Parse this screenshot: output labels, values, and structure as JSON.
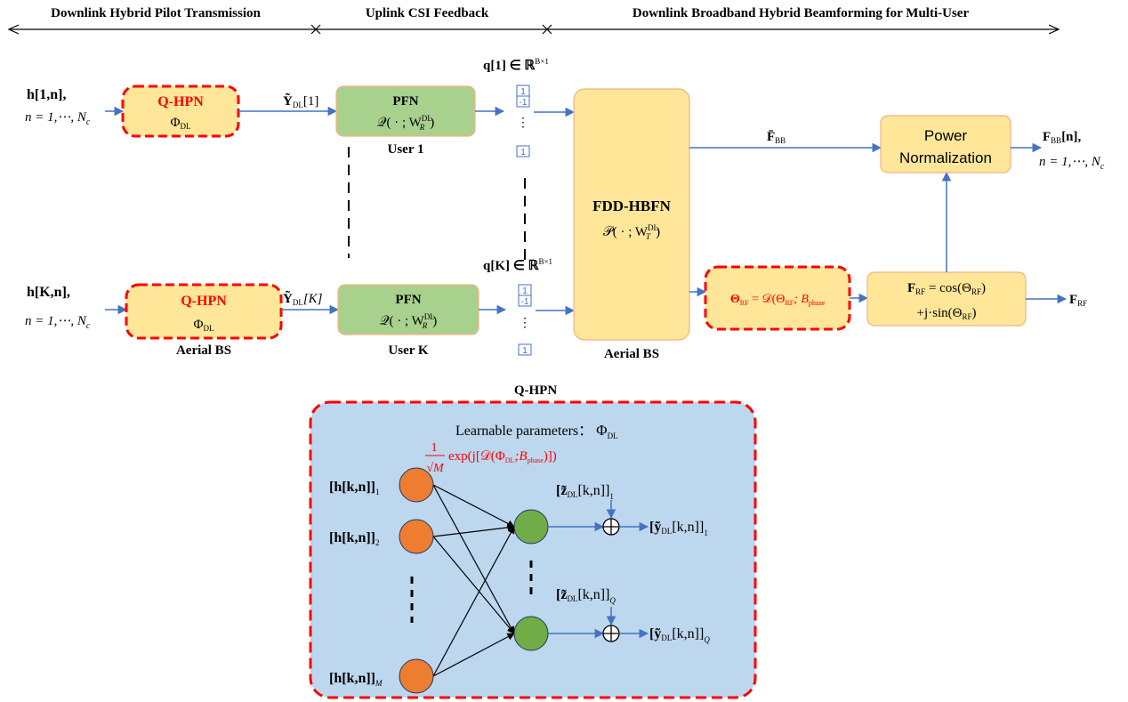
{
  "stages": {
    "stage1": "Downlink Hybrid Pilot Transmission",
    "stage2": "Uplink CSI Feedback",
    "stage3": "Downlink Broadband Hybrid Beamforming for Multi-User"
  },
  "top_row": {
    "input_line1": "h[1,n],",
    "input_line2": "n = 1,⋯, N",
    "input_sub": "c",
    "qhpn_title": "Q-HPN",
    "qhpn_param": "Φ",
    "qhpn_param_sub": "DL",
    "y_label": "Ỹ",
    "y_sub": "DL",
    "y_idx": "[1]",
    "pfn_title": "PFN",
    "pfn_func": "𝒬( · ; W",
    "pfn_sup": "DL",
    "pfn_sub": "R",
    "pfn_close": ")",
    "user_label": "User 1",
    "q_label": "q[1] ∈ ℝ",
    "q_sup": "B×1",
    "bits": [
      "1",
      "-1",
      "⋮",
      "1"
    ]
  },
  "bottom_row": {
    "input_line1": "h[K,n],",
    "input_line2": "n = 1,⋯, N",
    "input_sub": "c",
    "qhpn_title": "Q-HPN",
    "qhpn_param": "Φ",
    "qhpn_param_sub": "DL",
    "bs_label": "Aerial BS",
    "y_label": "Ỹ",
    "y_sub": "DL",
    "y_idx": "[K]",
    "pfn_title": "PFN",
    "pfn_func": "𝒬( · ; W",
    "pfn_sup": "DL",
    "pfn_sub": "R",
    "pfn_close": ")",
    "user_label": "User K",
    "q_label": "q[K] ∈ ℝ",
    "q_sup": "B×1",
    "bits": [
      "1",
      "-1",
      "⋮",
      "1"
    ]
  },
  "hbfn": {
    "title": "FDD-HBFN",
    "func": "𝒫( · ; W",
    "sup": "DL",
    "sub": "T",
    "close": ")",
    "bs_label": "Aerial BS",
    "fbb_label": "F̄",
    "fbb_sub": "BB"
  },
  "power": {
    "line1": "Power",
    "line2": "Normalization",
    "out_line1": "F",
    "out_sub": "BB",
    "out_rest": "[n],",
    "out_line2": "n = 1,⋯, N",
    "out_line2_sub": "c"
  },
  "quant": {
    "text_a": "Θ",
    "sub_a": "RF",
    "text_b": " = 𝒟(Θ",
    "sub_b": "RF",
    "text_c": "; B",
    "sub_c": "phase"
  },
  "frf": {
    "line1_a": "F",
    "line1_sub": "RF",
    "line1_b": " = cos(Θ",
    "line1_sub2": "RF",
    "line1_c": ")",
    "line2_a": "+j·sin(Θ",
    "line2_sub": "RF",
    "line2_b": ")",
    "out_a": "F",
    "out_sub": "RF"
  },
  "detail": {
    "title": "Q-HPN",
    "params_text": "Learnable parameters：",
    "params_sym": "Φ",
    "params_sub": "DL",
    "weight_num": "1",
    "weight_den": "√M",
    "weight_expr_a": "exp(j[𝒟(Φ",
    "weight_sub_a": "DL",
    "weight_expr_b": ";B",
    "weight_sub_b": "phase",
    "weight_expr_c": ")])",
    "in1": "[h[k,n]]",
    "in1_sub": "1",
    "in2": "[h[k,n]]",
    "in2_sub": "2",
    "inM": "[h[k,n]]",
    "inM_sub": "M",
    "z1": "[z̃",
    "z1_sub": "DL",
    "z1_rest": "[k,n]]",
    "z1_idx": "1",
    "zQ": "[z̃",
    "zQ_sub": "DL",
    "zQ_rest": "[k,n]]",
    "zQ_idx": "Q",
    "y1": "[ỹ",
    "y1_sub": "DL",
    "y1_rest": "[k,n]]",
    "y1_idx": "1",
    "yQ": "[ỹ",
    "yQ_sub": "DL",
    "yQ_rest": "[k,n]]",
    "yQ_idx": "Q"
  },
  "colors": {
    "arrow": "#4472c4",
    "red": "#ff0000",
    "yellow_fill": "#ffe699",
    "yellow_stroke": "#f4b183",
    "green_fill": "#a9d18e",
    "detail_fill": "#bdd7ee",
    "orange_node": "#ed7d31",
    "green_node": "#70ad47"
  }
}
